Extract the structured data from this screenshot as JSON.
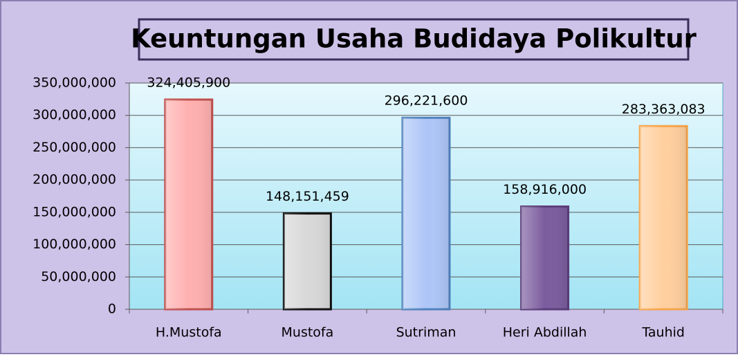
{
  "chart_data": {
    "type": "bar",
    "title": "Keuntungan Usaha Budidaya Polikultur",
    "categories": [
      "H.Mustofa",
      "Mustofa",
      "Sutriman",
      "Heri Abdillah",
      "Tauhid"
    ],
    "values": [
      324405900,
      148151459,
      296221600,
      158916000,
      283363083
    ],
    "value_labels": [
      "324,405,900",
      "148,151,459",
      "296,221,600",
      "158,916,000",
      "283,363,083"
    ],
    "colors": [
      "#ffb0b0",
      "#d8d8d8",
      "#aec6f7",
      "#7b5c9e",
      "#ffcf9e"
    ],
    "edge_colors": [
      "#c0504d",
      "#111111",
      "#4f81bd",
      "#5b3d7a",
      "#f7a54a"
    ],
    "ylim": [
      0,
      350000000
    ],
    "yticks": [
      0,
      {
        "value": 50000000,
        "label": "50,000,000"
      },
      {
        "value": 100000000,
        "label": "100,000,000"
      },
      {
        "value": 150000000,
        "label": "150,000,000"
      },
      {
        "value": 200000000,
        "label": "200,000,000"
      },
      {
        "value": 250000000,
        "label": "250,000,000"
      },
      {
        "value": 300000000,
        "label": "300,000,000"
      },
      {
        "value": 350000000,
        "label": "350,000,000"
      }
    ],
    "grid": true
  }
}
